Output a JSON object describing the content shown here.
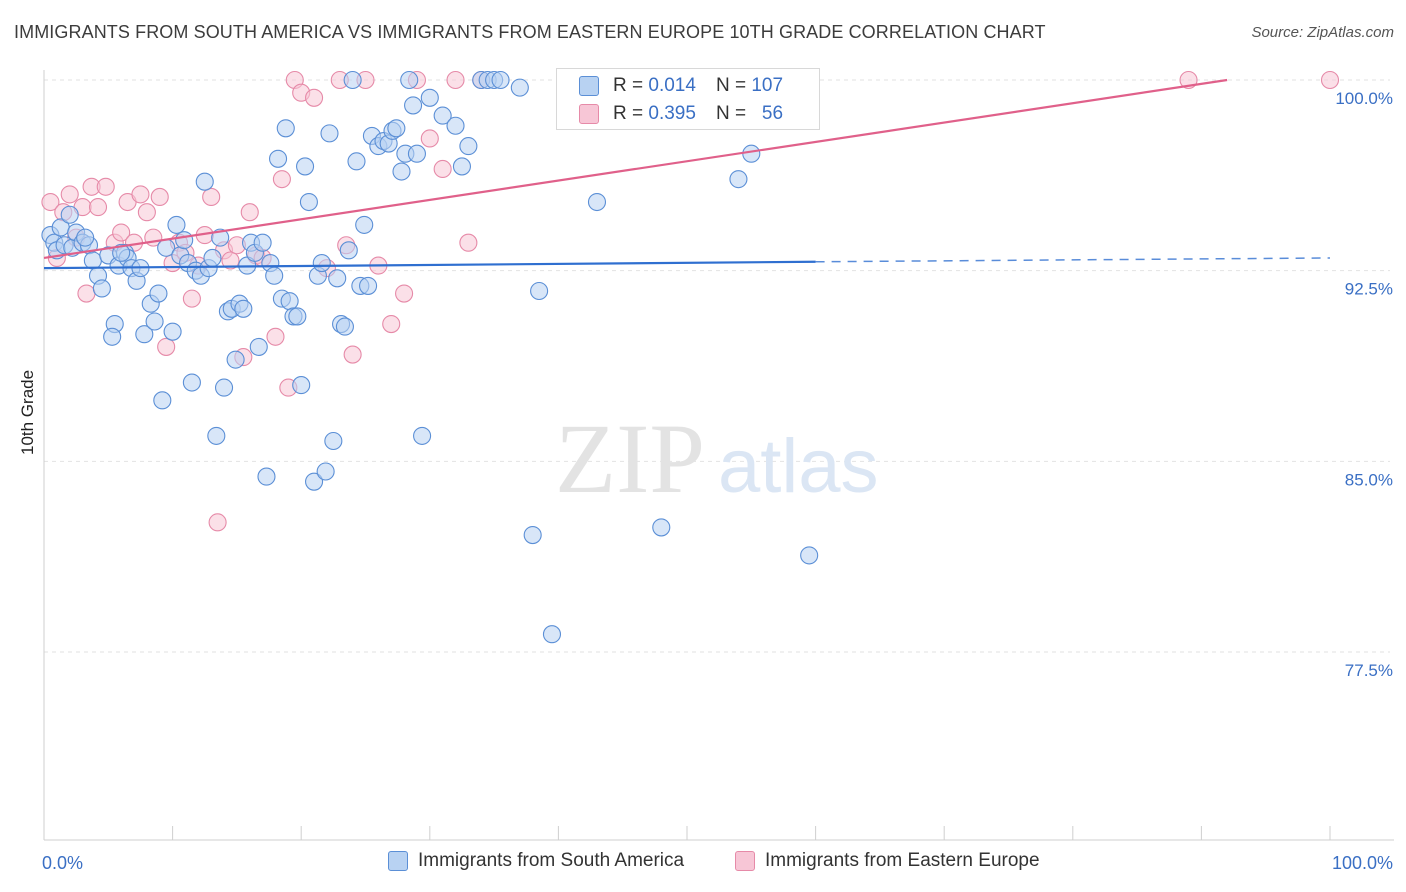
{
  "header": {
    "title": "IMMIGRANTS FROM SOUTH AMERICA VS IMMIGRANTS FROM EASTERN EUROPE 10TH GRADE CORRELATION CHART",
    "source": "Source: ZipAtlas.com"
  },
  "watermark": {
    "zip": "ZIP",
    "atlas": "atlas"
  },
  "colors": {
    "blue_fill": "#b8d2f2",
    "blue_stroke": "#5b8fd6",
    "blue_line": "#2f6fd0",
    "pink_fill": "#f7c6d6",
    "pink_stroke": "#e68aa8",
    "pink_line": "#e0608a",
    "axis_text": "#3a6fc4"
  },
  "stats": {
    "blue": {
      "r_label": "R =",
      "r_value": "0.014",
      "n_label": "N =",
      "n_value": "107"
    },
    "pink": {
      "r_label": "R =",
      "r_value": "0.395",
      "n_label": "N =",
      "n_value": "56"
    }
  },
  "chart_data": {
    "type": "scatter",
    "title": "IMMIGRANTS FROM SOUTH AMERICA VS IMMIGRANTS FROM EASTERN EUROPE 10TH GRADE CORRELATION CHART",
    "xlabel": "",
    "ylabel": "10th Grade",
    "xlim": [
      0,
      100
    ],
    "ylim": [
      71.5,
      101.0
    ],
    "x_tick_labels": [
      "0.0%",
      "100.0%"
    ],
    "y_ticks": [
      {
        "value": 100.0,
        "label": "100.0%"
      },
      {
        "value": 92.5,
        "label": "92.5%"
      },
      {
        "value": 85.0,
        "label": "85.0%"
      },
      {
        "value": 77.5,
        "label": "77.5%"
      }
    ],
    "grid": "horizontal dashed",
    "legend_position": "bottom",
    "series": [
      {
        "name": "Immigrants from South America",
        "color": "#5b8fd6",
        "trend": {
          "x": [
            0,
            60,
            100
          ],
          "y": [
            92.6,
            92.85,
            93.0
          ],
          "solid_until": 60
        },
        "points": [
          [
            0.5,
            93.9
          ],
          [
            0.8,
            93.6
          ],
          [
            1.0,
            93.3
          ],
          [
            1.3,
            94.2
          ],
          [
            1.6,
            93.5
          ],
          [
            2.0,
            94.7
          ],
          [
            2.2,
            93.4
          ],
          [
            2.5,
            94.0
          ],
          [
            3.0,
            93.6
          ],
          [
            3.5,
            93.5
          ],
          [
            3.8,
            92.9
          ],
          [
            4.2,
            92.3
          ],
          [
            4.5,
            91.8
          ],
          [
            5.0,
            93.1
          ],
          [
            5.5,
            90.4
          ],
          [
            5.3,
            89.9
          ],
          [
            5.8,
            92.7
          ],
          [
            6.3,
            93.2
          ],
          [
            6.5,
            93.0
          ],
          [
            6.8,
            92.6
          ],
          [
            7.2,
            92.1
          ],
          [
            7.5,
            92.6
          ],
          [
            7.8,
            90.0
          ],
          [
            8.3,
            91.2
          ],
          [
            8.6,
            90.5
          ],
          [
            8.9,
            91.6
          ],
          [
            9.2,
            87.4
          ],
          [
            9.5,
            93.4
          ],
          [
            10.0,
            90.1
          ],
          [
            10.3,
            94.3
          ],
          [
            10.6,
            93.1
          ],
          [
            10.9,
            93.7
          ],
          [
            11.2,
            92.8
          ],
          [
            11.5,
            88.1
          ],
          [
            11.8,
            92.5
          ],
          [
            12.2,
            92.3
          ],
          [
            12.5,
            96.0
          ],
          [
            12.8,
            92.6
          ],
          [
            13.1,
            93.0
          ],
          [
            13.4,
            86.0
          ],
          [
            13.7,
            93.8
          ],
          [
            14.0,
            87.9
          ],
          [
            14.3,
            90.9
          ],
          [
            14.6,
            91.0
          ],
          [
            14.9,
            89.0
          ],
          [
            15.2,
            91.2
          ],
          [
            15.5,
            91.0
          ],
          [
            15.8,
            92.7
          ],
          [
            16.1,
            93.6
          ],
          [
            16.4,
            93.2
          ],
          [
            16.7,
            89.5
          ],
          [
            17.0,
            93.6
          ],
          [
            17.3,
            84.4
          ],
          [
            17.6,
            92.8
          ],
          [
            17.9,
            92.3
          ],
          [
            18.2,
            96.9
          ],
          [
            18.5,
            91.4
          ],
          [
            18.8,
            98.1
          ],
          [
            19.1,
            91.3
          ],
          [
            19.4,
            90.7
          ],
          [
            19.7,
            90.7
          ],
          [
            20.0,
            88.0
          ],
          [
            20.3,
            96.6
          ],
          [
            20.6,
            95.2
          ],
          [
            21.0,
            84.2
          ],
          [
            21.3,
            92.3
          ],
          [
            21.6,
            92.8
          ],
          [
            21.9,
            84.6
          ],
          [
            22.2,
            97.9
          ],
          [
            22.5,
            85.8
          ],
          [
            22.8,
            92.2
          ],
          [
            23.1,
            90.4
          ],
          [
            23.4,
            90.3
          ],
          [
            23.7,
            93.3
          ],
          [
            24.0,
            100.0
          ],
          [
            24.3,
            96.8
          ],
          [
            24.6,
            91.9
          ],
          [
            24.9,
            94.3
          ],
          [
            25.2,
            91.9
          ],
          [
            25.5,
            97.8
          ],
          [
            26.0,
            97.4
          ],
          [
            26.4,
            97.6
          ],
          [
            26.8,
            97.5
          ],
          [
            27.1,
            98.0
          ],
          [
            27.4,
            98.1
          ],
          [
            27.8,
            96.4
          ],
          [
            28.1,
            97.1
          ],
          [
            28.4,
            100.0
          ],
          [
            28.7,
            99.0
          ],
          [
            29.0,
            97.1
          ],
          [
            29.4,
            86.0
          ],
          [
            30.0,
            99.3
          ],
          [
            31.0,
            98.6
          ],
          [
            32.0,
            98.2
          ],
          [
            32.5,
            96.6
          ],
          [
            33.0,
            97.4
          ],
          [
            34.0,
            100.0
          ],
          [
            34.5,
            100.0
          ],
          [
            35.0,
            100.0
          ],
          [
            35.5,
            100.0
          ],
          [
            37.0,
            99.7
          ],
          [
            38.0,
            82.1
          ],
          [
            38.5,
            91.7
          ],
          [
            39.5,
            78.2
          ],
          [
            43.0,
            95.2
          ],
          [
            48.0,
            82.4
          ],
          [
            54.0,
            96.1
          ],
          [
            55.0,
            97.1
          ],
          [
            59.5,
            81.3
          ],
          [
            3.2,
            93.8
          ],
          [
            6.0,
            93.2
          ]
        ]
      },
      {
        "name": "Immigrants from Eastern Europe",
        "color": "#e68aa8",
        "trend": {
          "x": [
            0,
            92
          ],
          "y": [
            93.0,
            100.0
          ]
        },
        "points": [
          [
            0.5,
            95.2
          ],
          [
            1.0,
            93.0
          ],
          [
            1.5,
            94.8
          ],
          [
            2.0,
            95.5
          ],
          [
            2.5,
            93.8
          ],
          [
            3.0,
            95.0
          ],
          [
            3.3,
            91.6
          ],
          [
            3.7,
            95.8
          ],
          [
            4.2,
            95.0
          ],
          [
            4.8,
            95.8
          ],
          [
            5.5,
            93.6
          ],
          [
            6.0,
            94.0
          ],
          [
            6.5,
            95.2
          ],
          [
            7.0,
            93.6
          ],
          [
            7.5,
            95.5
          ],
          [
            8.0,
            94.8
          ],
          [
            8.5,
            93.8
          ],
          [
            9.0,
            95.4
          ],
          [
            9.5,
            89.5
          ],
          [
            10.0,
            92.8
          ],
          [
            10.5,
            93.6
          ],
          [
            11.0,
            93.2
          ],
          [
            11.5,
            91.4
          ],
          [
            12.0,
            92.7
          ],
          [
            12.5,
            93.9
          ],
          [
            13.0,
            95.4
          ],
          [
            13.5,
            82.6
          ],
          [
            14.0,
            93.3
          ],
          [
            14.5,
            92.9
          ],
          [
            15.0,
            93.5
          ],
          [
            15.5,
            89.1
          ],
          [
            16.0,
            94.8
          ],
          [
            16.5,
            93.1
          ],
          [
            17.0,
            93.0
          ],
          [
            18.0,
            89.9
          ],
          [
            18.5,
            96.1
          ],
          [
            19.0,
            87.9
          ],
          [
            19.5,
            100.0
          ],
          [
            20.0,
            99.5
          ],
          [
            21.0,
            99.3
          ],
          [
            22.0,
            92.6
          ],
          [
            23.0,
            100.0
          ],
          [
            23.5,
            93.5
          ],
          [
            24.0,
            89.2
          ],
          [
            25.0,
            100.0
          ],
          [
            26.0,
            92.7
          ],
          [
            27.0,
            90.4
          ],
          [
            28.0,
            91.6
          ],
          [
            29.0,
            100.0
          ],
          [
            30.0,
            97.7
          ],
          [
            31.0,
            96.5
          ],
          [
            32.0,
            100.0
          ],
          [
            33.0,
            93.6
          ],
          [
            34.0,
            100.0
          ],
          [
            89.0,
            100.0
          ],
          [
            100.0,
            100.0
          ]
        ]
      }
    ]
  },
  "legend": {
    "items": [
      {
        "label": "Immigrants from South America"
      },
      {
        "label": "Immigrants from Eastern Europe"
      }
    ]
  }
}
